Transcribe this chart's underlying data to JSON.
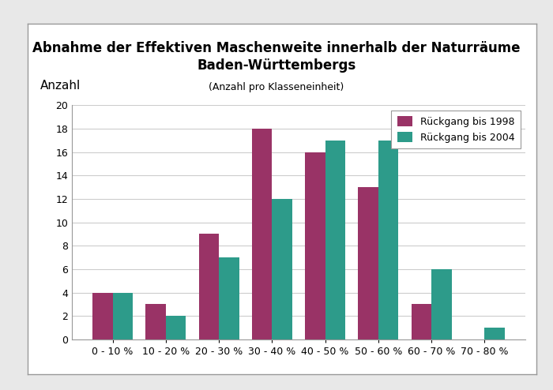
{
  "title_line1": "Abnahme der Effektiven Maschenweite innerhalb der Naturräume",
  "title_line2": "Baden-Württembergs",
  "subtitle": "(Anzahl pro Klasseneinheit)",
  "ylabel": "Anzahl",
  "categories": [
    "0 - 10 %",
    "10 - 20 %",
    "20 - 30 %",
    "30 - 40 %",
    "40 - 50 %",
    "50 - 60 %",
    "60 - 70 %",
    "70 - 80 %"
  ],
  "values_1998": [
    4,
    3,
    9,
    18,
    16,
    13,
    3,
    0
  ],
  "values_2004": [
    4,
    2,
    7,
    12,
    17,
    17,
    6,
    1
  ],
  "color_1998": "#993366",
  "color_2004": "#2d9b8a",
  "legend_1998": "Rückgang bis 1998",
  "legend_2004": "Rückgang bis 2004",
  "ylim": [
    0,
    20
  ],
  "yticks": [
    0,
    2,
    4,
    6,
    8,
    10,
    12,
    14,
    16,
    18,
    20
  ],
  "bar_width": 0.38,
  "title_fontsize": 12,
  "subtitle_fontsize": 9,
  "ylabel_fontsize": 11,
  "tick_fontsize": 9,
  "legend_fontsize": 9,
  "outer_bg": "#e8e8e8",
  "inner_bg": "#ffffff",
  "box_bg": "#ffffff",
  "grid_color": "#cccccc",
  "box_edge_color": "#999999"
}
